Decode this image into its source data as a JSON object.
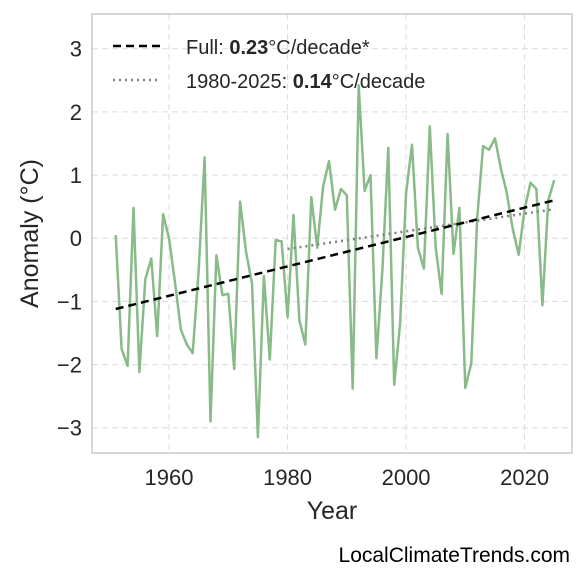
{
  "chart_data": {
    "type": "line",
    "title": "",
    "xlabel": "Year",
    "ylabel": "Anomaly (°C)",
    "xlim": [
      1947,
      2028
    ],
    "ylim": [
      -3.4,
      3.55
    ],
    "xticks": [
      1960,
      1980,
      2000,
      2020
    ],
    "yticks": [
      -3,
      -2,
      -1,
      0,
      1,
      2,
      3
    ],
    "xtick_labels": [
      "1960",
      "1980",
      "2000",
      "2020"
    ],
    "ytick_labels": [
      "−3",
      "−2",
      "−1",
      "0",
      "1",
      "2",
      "3"
    ],
    "grid": true,
    "legend_position": "top-left",
    "colors": {
      "anomaly": "#88bb88",
      "full_trend": "#000000",
      "recent_trend": "#808080"
    },
    "series": [
      {
        "key": "anomaly",
        "x": [
          1951,
          1952,
          1953,
          1954,
          1955,
          1956,
          1957,
          1958,
          1959,
          1960,
          1961,
          1962,
          1963,
          1964,
          1965,
          1966,
          1967,
          1968,
          1969,
          1970,
          1971,
          1972,
          1973,
          1974,
          1975,
          1976,
          1977,
          1978,
          1979,
          1980,
          1981,
          1982,
          1983,
          1984,
          1985,
          1986,
          1987,
          1988,
          1989,
          1990,
          1991,
          1992,
          1993,
          1994,
          1995,
          1996,
          1997,
          1998,
          1999,
          2000,
          2001,
          2002,
          2003,
          2004,
          2005,
          2006,
          2007,
          2008,
          2009,
          2010,
          2011,
          2012,
          2013,
          2014,
          2015,
          2016,
          2017,
          2018,
          2019,
          2020,
          2021,
          2022,
          2023,
          2024,
          2025
        ],
        "y": [
          0.05,
          -1.75,
          -2.02,
          0.48,
          -2.12,
          -0.65,
          -0.32,
          -1.55,
          0.38,
          0.0,
          -0.7,
          -1.45,
          -1.68,
          -1.82,
          -0.5,
          1.28,
          -2.9,
          -0.27,
          -0.9,
          -0.88,
          -2.07,
          0.58,
          -0.22,
          -0.72,
          -3.15,
          -0.6,
          -1.92,
          -0.03,
          -0.05,
          -1.25,
          0.37,
          -1.3,
          -1.68,
          0.65,
          -0.15,
          0.82,
          1.22,
          0.45,
          0.78,
          0.68,
          -2.38,
          2.42,
          0.75,
          1.0,
          -1.9,
          -0.5,
          1.43,
          -2.32,
          -1.35,
          0.72,
          1.48,
          -0.15,
          -0.48,
          1.77,
          -0.15,
          -0.88,
          1.65,
          -0.25,
          0.48,
          -2.37,
          -1.98,
          0.32,
          1.46,
          1.4,
          1.58,
          1.1,
          0.72,
          0.15,
          -0.26,
          0.46,
          0.88,
          0.78,
          -1.06,
          0.6,
          0.92
        ]
      },
      {
        "key": "full_trend",
        "name": "Full: 0.23°C/decade*",
        "x": [
          1951,
          2025
        ],
        "y": [
          -1.12,
          0.6
        ]
      },
      {
        "key": "recent_trend",
        "name": "1980-2025: 0.14°C/decade",
        "x": [
          1980,
          2025
        ],
        "y": [
          -0.17,
          0.46
        ]
      }
    ]
  },
  "legend": {
    "full": {
      "prefix": "Full: ",
      "value": "0.23",
      "suffix": "°C/decade*"
    },
    "recent": {
      "prefix": "1980-2025: ",
      "value": "0.14",
      "suffix": "°C/decade"
    }
  },
  "watermark": "LocalClimateTrends.com"
}
